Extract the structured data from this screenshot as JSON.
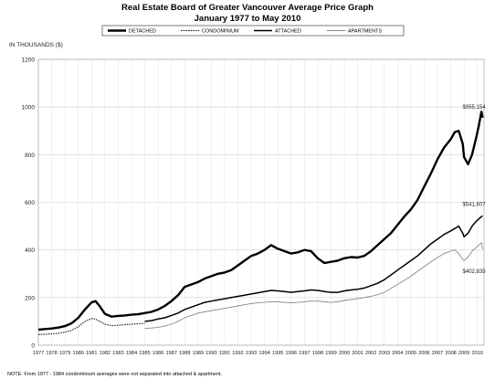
{
  "chart_data": {
    "type": "line",
    "title": "Real Estate Board of Greater Vancouver Average Price Graph",
    "subtitle": "January 1977 to May 2010",
    "ylabel": "IN THOUSANDS ($)",
    "xlabel": "",
    "ylim": [
      0,
      1200
    ],
    "yticks": [
      "0",
      "200",
      "400",
      "600",
      "800",
      "1000",
      "1200"
    ],
    "xlim": [
      1977,
      2010.5
    ],
    "xtick_labels": [
      "1977",
      "1978",
      "1979",
      "1980",
      "1981",
      "1982",
      "1983",
      "1984",
      "1985",
      "1986",
      "1987",
      "1988",
      "1989",
      "1990",
      "1991",
      "1992",
      "1993",
      "1994",
      "1995",
      "1996",
      "1997",
      "1998",
      "1999",
      "2000",
      "2001",
      "2002",
      "2003",
      "2004",
      "2005",
      "2006",
      "2007",
      "2008",
      "2009",
      "2010"
    ],
    "grid": true,
    "legend_position": "top-center",
    "legend": [
      "DETACHED",
      "CONDOMINIUM",
      "ATTACHED",
      "APARTMENTS"
    ],
    "annotations": [
      {
        "text": "$955,154",
        "x": 2010.4,
        "y": 955
      },
      {
        "text": "$541,607",
        "x": 2010.4,
        "y": 542
      },
      {
        "text": "$402,835",
        "x": 2010.4,
        "y": 403
      }
    ],
    "note": "NOTE:  From 1977 - 1984 condominium averages were not separated into attached & apartment.",
    "series": [
      {
        "name": "DETACHED",
        "color": "#000000",
        "style": "heavy",
        "x": [
          1977,
          1977.5,
          1978,
          1978.5,
          1979,
          1979.5,
          1980,
          1980.5,
          1981,
          1981.3,
          1981.6,
          1982,
          1982.5,
          1983,
          1983.5,
          1984,
          1984.5,
          1985,
          1985.5,
          1986,
          1986.5,
          1987,
          1987.5,
          1988,
          1988.5,
          1989,
          1989.5,
          1990,
          1990.5,
          1991,
          1991.5,
          1992,
          1992.5,
          1993,
          1993.5,
          1994,
          1994.5,
          1995,
          1995.5,
          1996,
          1996.5,
          1997,
          1997.5,
          1998,
          1998.5,
          1999,
          1999.5,
          2000,
          2000.5,
          2001,
          2001.5,
          2002,
          2002.5,
          2003,
          2003.5,
          2004,
          2004.5,
          2005,
          2005.5,
          2006,
          2006.5,
          2007,
          2007.5,
          2008,
          2008.3,
          2008.6,
          2008.9,
          2009,
          2009.3,
          2009.6,
          2009.9,
          2010.1,
          2010.3,
          2010.4
        ],
        "y": [
          65,
          68,
          70,
          74,
          80,
          92,
          115,
          150,
          180,
          185,
          165,
          132,
          120,
          123,
          125,
          128,
          130,
          135,
          140,
          150,
          165,
          185,
          210,
          245,
          255,
          265,
          280,
          290,
          300,
          305,
          315,
          335,
          355,
          375,
          385,
          400,
          420,
          405,
          395,
          385,
          390,
          400,
          395,
          365,
          345,
          350,
          355,
          365,
          370,
          368,
          375,
          395,
          420,
          445,
          470,
          505,
          540,
          570,
          610,
          665,
          720,
          780,
          830,
          865,
          895,
          900,
          845,
          790,
          760,
          800,
          870,
          920,
          980,
          955
        ]
      },
      {
        "name": "ATTACHED",
        "color": "#000000",
        "style": "medium",
        "x": [
          1985,
          1985.5,
          1986,
          1986.5,
          1987,
          1987.5,
          1988,
          1988.5,
          1989,
          1989.5,
          1990,
          1990.5,
          1991,
          1991.5,
          1992,
          1992.5,
          1993,
          1993.5,
          1994,
          1994.5,
          1995,
          1995.5,
          1996,
          1996.5,
          1997,
          1997.5,
          1998,
          1998.5,
          1999,
          1999.5,
          2000,
          2000.5,
          2001,
          2001.5,
          2002,
          2002.5,
          2003,
          2003.5,
          2004,
          2004.5,
          2005,
          2005.5,
          2006,
          2006.5,
          2007,
          2007.5,
          2008,
          2008.3,
          2008.6,
          2008.9,
          2009,
          2009.3,
          2009.6,
          2009.9,
          2010.1,
          2010.3,
          2010.4
        ],
        "y": [
          100,
          103,
          110,
          115,
          125,
          135,
          150,
          160,
          170,
          180,
          185,
          190,
          195,
          200,
          205,
          210,
          215,
          220,
          225,
          230,
          228,
          225,
          222,
          225,
          228,
          232,
          230,
          225,
          222,
          222,
          228,
          232,
          235,
          240,
          250,
          260,
          275,
          295,
          315,
          335,
          355,
          375,
          400,
          425,
          445,
          465,
          480,
          490,
          500,
          470,
          455,
          470,
          500,
          520,
          530,
          540,
          542
        ]
      },
      {
        "name": "APARTMENTS",
        "color": "#888888",
        "style": "thin",
        "x": [
          1985,
          1985.5,
          1986,
          1986.5,
          1987,
          1987.5,
          1988,
          1988.5,
          1989,
          1989.5,
          1990,
          1990.5,
          1991,
          1991.5,
          1992,
          1992.5,
          1993,
          1993.5,
          1994,
          1994.5,
          1995,
          1995.5,
          1996,
          1996.5,
          1997,
          1997.5,
          1998,
          1998.5,
          1999,
          1999.5,
          2000,
          2000.5,
          2001,
          2001.5,
          2002,
          2002.5,
          2003,
          2003.5,
          2004,
          2004.5,
          2005,
          2005.5,
          2006,
          2006.5,
          2007,
          2007.5,
          2008,
          2008.3,
          2008.6,
          2008.9,
          2009,
          2009.3,
          2009.6,
          2009.9,
          2010.1,
          2010.3,
          2010.4
        ],
        "y": [
          70,
          72,
          75,
          80,
          88,
          100,
          115,
          125,
          135,
          140,
          145,
          150,
          155,
          160,
          165,
          170,
          175,
          178,
          180,
          183,
          182,
          180,
          178,
          180,
          182,
          185,
          185,
          182,
          180,
          182,
          188,
          192,
          195,
          200,
          205,
          212,
          222,
          238,
          255,
          272,
          290,
          310,
          330,
          350,
          368,
          385,
          395,
          400,
          385,
          360,
          355,
          370,
          395,
          410,
          420,
          430,
          403
        ]
      },
      {
        "name": "CONDOMINIUM",
        "color": "#000000",
        "style": "dotted",
        "x": [
          1977,
          1977.5,
          1978,
          1978.5,
          1979,
          1979.5,
          1980,
          1980.5,
          1981,
          1981.3,
          1981.6,
          1982,
          1982.5,
          1983,
          1983.5,
          1984,
          1984.5,
          1985
        ],
        "y": [
          45,
          46,
          48,
          50,
          55,
          62,
          78,
          100,
          112,
          110,
          100,
          88,
          82,
          84,
          86,
          88,
          90,
          92
        ]
      }
    ]
  }
}
